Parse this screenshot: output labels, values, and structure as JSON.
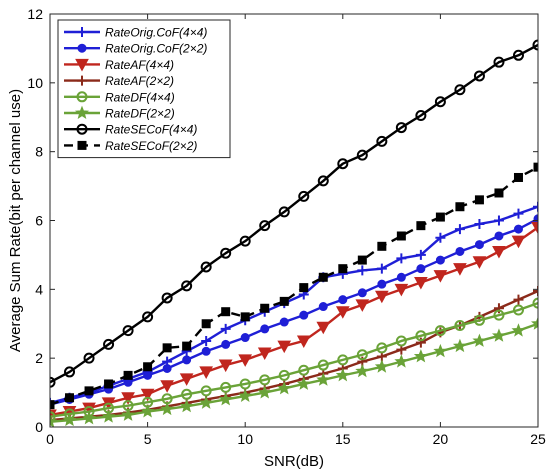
{
  "chart_data": {
    "type": "line",
    "xlabel": "SNR(dB)",
    "ylabel": "Average Sum Rate(bit per channel use)",
    "xlim": [
      0,
      25
    ],
    "ylim": [
      0,
      12
    ],
    "xticks": [
      0,
      5,
      10,
      15,
      20,
      25
    ],
    "yticks": [
      0,
      2,
      4,
      6,
      8,
      10,
      12
    ],
    "grid": false,
    "legend_position": "top-left",
    "x": [
      0,
      1,
      2,
      3,
      4,
      5,
      6,
      7,
      8,
      9,
      10,
      11,
      12,
      13,
      14,
      15,
      16,
      17,
      18,
      19,
      20,
      21,
      22,
      23,
      24,
      25
    ],
    "series": [
      {
        "name": "RateOrig.CoF(4×4)",
        "color": "#1f1fd6",
        "marker": "plus",
        "line": "solid",
        "values": [
          0.7,
          0.85,
          1.0,
          1.2,
          1.4,
          1.6,
          1.9,
          2.2,
          2.5,
          2.85,
          3.1,
          3.35,
          3.6,
          3.85,
          4.35,
          4.45,
          4.55,
          4.6,
          4.9,
          5.0,
          5.5,
          5.75,
          5.9,
          6.0,
          6.2,
          6.4
        ]
      },
      {
        "name": "RateOrig.CoF(2×2)",
        "color": "#1f1fd6",
        "marker": "circle-filled",
        "line": "solid",
        "values": [
          0.65,
          0.8,
          0.95,
          1.1,
          1.3,
          1.5,
          1.7,
          1.95,
          2.2,
          2.4,
          2.6,
          2.85,
          3.05,
          3.25,
          3.5,
          3.7,
          3.9,
          4.15,
          4.35,
          4.6,
          4.85,
          5.1,
          5.3,
          5.55,
          5.75,
          6.05
        ]
      },
      {
        "name": "RateAF(4×4)",
        "color": "#c0261e",
        "marker": "triangle-down",
        "line": "solid",
        "values": [
          0.35,
          0.45,
          0.55,
          0.7,
          0.85,
          0.95,
          1.2,
          1.4,
          1.6,
          1.8,
          1.95,
          2.15,
          2.35,
          2.5,
          2.9,
          3.35,
          3.55,
          3.8,
          4.0,
          4.2,
          4.4,
          4.6,
          4.8,
          5.1,
          5.4,
          5.8
        ]
      },
      {
        "name": "RateAF(2×2)",
        "color": "#8b2a1a",
        "marker": "plus",
        "line": "solid",
        "values": [
          0.2,
          0.25,
          0.3,
          0.35,
          0.42,
          0.5,
          0.6,
          0.7,
          0.8,
          0.9,
          1.0,
          1.12,
          1.25,
          1.4,
          1.55,
          1.7,
          1.9,
          2.05,
          2.25,
          2.45,
          2.75,
          2.95,
          3.2,
          3.45,
          3.7,
          3.95
        ]
      },
      {
        "name": "RateDF(4×4)",
        "color": "#6aa338",
        "marker": "circle-open",
        "line": "solid",
        "values": [
          0.3,
          0.38,
          0.45,
          0.55,
          0.62,
          0.72,
          0.82,
          0.95,
          1.05,
          1.15,
          1.25,
          1.37,
          1.5,
          1.65,
          1.8,
          1.95,
          2.1,
          2.3,
          2.5,
          2.65,
          2.8,
          2.95,
          3.1,
          3.25,
          3.4,
          3.6
        ]
      },
      {
        "name": "RateDF(2×2)",
        "color": "#6aa338",
        "marker": "star",
        "line": "solid",
        "values": [
          0.15,
          0.2,
          0.25,
          0.3,
          0.35,
          0.45,
          0.52,
          0.6,
          0.7,
          0.8,
          0.9,
          1.0,
          1.12,
          1.25,
          1.37,
          1.5,
          1.62,
          1.75,
          1.9,
          2.05,
          2.2,
          2.35,
          2.5,
          2.65,
          2.8,
          3.0
        ]
      },
      {
        "name": "RateSECoF(4×4)",
        "color": "#000000",
        "marker": "circle-open",
        "line": "solid",
        "values": [
          1.3,
          1.6,
          2.0,
          2.4,
          2.8,
          3.2,
          3.75,
          4.1,
          4.65,
          5.05,
          5.4,
          5.85,
          6.25,
          6.7,
          7.15,
          7.65,
          7.9,
          8.3,
          8.7,
          9.05,
          9.45,
          9.8,
          10.2,
          10.6,
          10.8,
          11.1
        ]
      },
      {
        "name": "RateSECoF(2×2)",
        "color": "#000000",
        "marker": "square-filled",
        "line": "dashed",
        "values": [
          0.65,
          0.85,
          1.05,
          1.25,
          1.5,
          1.75,
          2.3,
          2.35,
          3.0,
          3.35,
          3.2,
          3.45,
          3.65,
          4.05,
          4.35,
          4.6,
          4.85,
          5.25,
          5.55,
          5.85,
          6.1,
          6.4,
          6.6,
          6.8,
          7.25,
          7.55
        ]
      }
    ]
  }
}
